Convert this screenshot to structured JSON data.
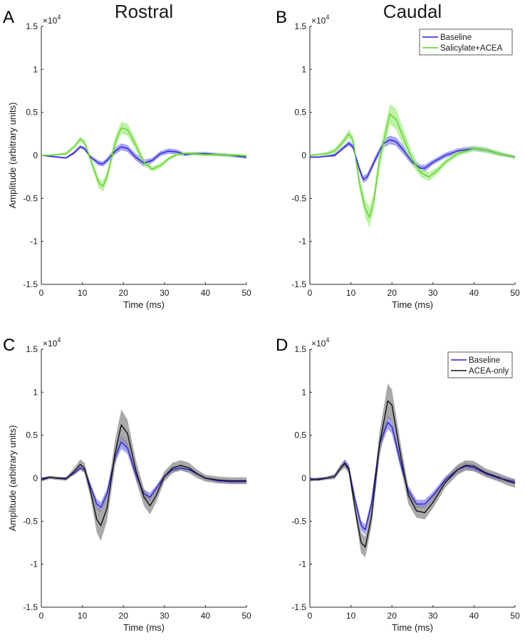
{
  "colors": {
    "baseline": "#2a1fd6",
    "baseline_band": "#8a86f2",
    "salicylate": "#5fd425",
    "salicylate_band": "#a8ee8a",
    "acea": "#111111",
    "acea_band": "#8c8c8c"
  },
  "chart_data": [
    {
      "type": "line",
      "panel": "A",
      "title": "Rostral",
      "xlabel": "Time (ms)",
      "ylabel": "Amplitude (arbitrary units)",
      "exponent_base": "×10",
      "exponent_power": "4",
      "xlim": [
        0,
        50
      ],
      "ylim": [
        -1.5,
        1.5
      ],
      "xticks": [
        0,
        10,
        20,
        30,
        40,
        50
      ],
      "yticks": [
        -1.5,
        -1,
        -0.5,
        0,
        0.5,
        1,
        1.5
      ],
      "xtick_labels": [
        "0",
        "10",
        "20",
        "30",
        "40",
        "50"
      ],
      "ytick_labels": [
        "-1.5",
        "-1",
        "-0.5",
        "0",
        "0.5",
        "1",
        "1.5"
      ],
      "legend": null,
      "series": [
        {
          "name": "Baseline",
          "color_key": "baseline",
          "x": [
            0,
            2,
            4,
            6,
            8,
            9.5,
            10.5,
            12,
            14,
            15,
            16,
            18,
            19.5,
            21,
            23,
            25,
            27,
            29,
            31,
            33,
            35,
            37,
            40,
            43,
            46,
            48,
            50
          ],
          "y": [
            0,
            -0.01,
            -0.02,
            -0.03,
            0.03,
            0.1,
            0.08,
            -0.02,
            -0.09,
            -0.1,
            -0.06,
            0.05,
            0.1,
            0.08,
            -0.02,
            -0.09,
            -0.06,
            0.02,
            0.05,
            0.04,
            0.01,
            0.02,
            0.02,
            0.01,
            0,
            -0.01,
            -0.02
          ],
          "band": [
            0,
            0.01,
            0.01,
            0.01,
            0.02,
            0.02,
            0.02,
            0.02,
            0.03,
            0.03,
            0.03,
            0.04,
            0.04,
            0.04,
            0.04,
            0.04,
            0.03,
            0.03,
            0.03,
            0.03,
            0.02,
            0.02,
            0.02,
            0.02,
            0.02,
            0.02,
            0.02
          ]
        },
        {
          "name": "Salicylate+ACEA",
          "color_key": "salicylate",
          "x": [
            0,
            2,
            4,
            6,
            8,
            9.5,
            10.5,
            12,
            14,
            15,
            16,
            18,
            19.5,
            21,
            23,
            25,
            27,
            29,
            31,
            33,
            35,
            37,
            40,
            43,
            46,
            48,
            50
          ],
          "y": [
            0,
            0,
            0.01,
            0.02,
            0.1,
            0.19,
            0.15,
            -0.05,
            -0.32,
            -0.36,
            -0.25,
            0.15,
            0.32,
            0.3,
            0.12,
            -0.08,
            -0.16,
            -0.12,
            -0.04,
            0.01,
            0.02,
            0.02,
            0.01,
            0.01,
            0,
            0,
            -0.01
          ],
          "band": [
            0,
            0.01,
            0.01,
            0.02,
            0.02,
            0.03,
            0.03,
            0.04,
            0.06,
            0.06,
            0.06,
            0.07,
            0.07,
            0.07,
            0.06,
            0.04,
            0.03,
            0.03,
            0.02,
            0.02,
            0.02,
            0.02,
            0.02,
            0.02,
            0.02,
            0.02,
            0.02
          ]
        }
      ]
    },
    {
      "type": "line",
      "panel": "B",
      "title": "Caudal",
      "xlabel": "Time (ms)",
      "ylabel": "",
      "exponent_base": "×10",
      "exponent_power": "4",
      "xlim": [
        0,
        50
      ],
      "ylim": [
        -1.5,
        1.5
      ],
      "xticks": [
        0,
        10,
        20,
        30,
        40,
        50
      ],
      "yticks": [
        -1.5,
        -1,
        -0.5,
        0,
        0.5,
        1,
        1.5
      ],
      "xtick_labels": [
        "0",
        "10",
        "20",
        "30",
        "40",
        "50"
      ],
      "ytick_labels": [
        "-1.5",
        "-1",
        "-0.5",
        "0",
        "0.5",
        "1",
        "1.5"
      ],
      "legend": {
        "position": "top-right",
        "entries": [
          "Baseline",
          "Salicylate+ACEA"
        ]
      },
      "series": [
        {
          "name": "Baseline",
          "color_key": "baseline",
          "x": [
            0,
            2,
            4,
            6,
            8,
            9.5,
            10.5,
            12,
            13,
            14,
            16,
            18,
            19.5,
            21,
            23,
            25,
            27,
            28,
            30,
            33,
            36,
            40,
            43,
            46,
            48,
            50
          ],
          "y": [
            -0.02,
            -0.02,
            -0.01,
            0,
            0.08,
            0.14,
            0.1,
            -0.15,
            -0.28,
            -0.25,
            -0.04,
            0.14,
            0.18,
            0.16,
            0.05,
            -0.08,
            -0.15,
            -0.15,
            -0.08,
            0,
            0.05,
            0.08,
            0.06,
            0.02,
            0,
            -0.02
          ],
          "band": [
            0.01,
            0.01,
            0.01,
            0.02,
            0.02,
            0.03,
            0.03,
            0.04,
            0.04,
            0.04,
            0.04,
            0.05,
            0.05,
            0.05,
            0.05,
            0.04,
            0.04,
            0.04,
            0.03,
            0.03,
            0.03,
            0.03,
            0.03,
            0.02,
            0.02,
            0.02
          ]
        },
        {
          "name": "Salicylate+ACEA",
          "color_key": "salicylate",
          "x": [
            0,
            2,
            4,
            6,
            8,
            9.5,
            10.5,
            12,
            13.5,
            14.5,
            15.5,
            17,
            19.5,
            21,
            23,
            25,
            27,
            29,
            31,
            33,
            36,
            40,
            43,
            46,
            48,
            50
          ],
          "y": [
            0,
            0.01,
            0.02,
            0.05,
            0.15,
            0.25,
            0.18,
            -0.3,
            -0.62,
            -0.72,
            -0.55,
            -0.05,
            0.48,
            0.42,
            0.18,
            -0.05,
            -0.2,
            -0.25,
            -0.18,
            -0.08,
            0.02,
            0.08,
            0.06,
            0.02,
            0,
            -0.02
          ],
          "band": [
            0.01,
            0.01,
            0.02,
            0.03,
            0.04,
            0.05,
            0.05,
            0.08,
            0.1,
            0.12,
            0.1,
            0.1,
            0.12,
            0.12,
            0.1,
            0.07,
            0.05,
            0.05,
            0.04,
            0.03,
            0.03,
            0.03,
            0.03,
            0.03,
            0.02,
            0.02
          ]
        }
      ]
    },
    {
      "type": "line",
      "panel": "C",
      "title": "",
      "xlabel": "Time (ms)",
      "ylabel": "Amplitude (arbitrary units)",
      "exponent_base": "×10",
      "exponent_power": "4",
      "xlim": [
        0,
        50
      ],
      "ylim": [
        -1.5,
        1.5
      ],
      "xticks": [
        0,
        10,
        20,
        30,
        40,
        50
      ],
      "yticks": [
        -1.5,
        -1,
        -0.5,
        0,
        0.5,
        1,
        1.5
      ],
      "xtick_labels": [
        "0",
        "10",
        "20",
        "30",
        "40",
        "50"
      ],
      "ytick_labels": [
        "-1.5",
        "-1",
        "-0.5",
        "0",
        "0.5",
        "1",
        "1.5"
      ],
      "legend": null,
      "series": [
        {
          "name": "Baseline",
          "color_key": "baseline",
          "x": [
            0,
            2,
            4,
            6,
            8,
            9.5,
            10.5,
            12,
            13.5,
            14.5,
            16,
            18,
            19.5,
            21,
            23,
            25,
            26.5,
            28,
            30,
            32,
            34,
            36,
            38,
            40,
            43,
            46,
            48,
            50
          ],
          "y": [
            0,
            0.01,
            0,
            0,
            0.06,
            0.12,
            0.1,
            -0.1,
            -0.3,
            -0.34,
            -0.18,
            0.25,
            0.42,
            0.35,
            0.05,
            -0.18,
            -0.22,
            -0.12,
            0.02,
            0.1,
            0.12,
            0.1,
            0.05,
            0,
            -0.03,
            -0.04,
            -0.04,
            -0.04
          ],
          "band": [
            0.01,
            0.01,
            0.01,
            0.01,
            0.02,
            0.03,
            0.03,
            0.04,
            0.06,
            0.06,
            0.06,
            0.07,
            0.08,
            0.07,
            0.06,
            0.05,
            0.05,
            0.04,
            0.03,
            0.03,
            0.03,
            0.03,
            0.02,
            0.02,
            0.02,
            0.02,
            0.02,
            0.02
          ]
        },
        {
          "name": "ACEA-only",
          "color_key": "acea",
          "x": [
            0,
            2,
            4,
            6,
            8,
            9.5,
            10.5,
            12,
            13.5,
            14.5,
            16,
            18,
            19.5,
            21,
            23,
            25,
            26.5,
            28,
            30,
            32,
            34,
            36,
            38,
            40,
            43,
            46,
            48,
            50
          ],
          "y": [
            -0.02,
            0.01,
            0,
            -0.01,
            0.08,
            0.16,
            0.12,
            -0.15,
            -0.48,
            -0.55,
            -0.35,
            0.3,
            0.62,
            0.52,
            0.1,
            -0.22,
            -0.32,
            -0.2,
            0.02,
            0.12,
            0.15,
            0.12,
            0.05,
            0,
            -0.02,
            -0.03,
            -0.03,
            -0.03
          ],
          "band": [
            0.02,
            0.02,
            0.02,
            0.02,
            0.04,
            0.06,
            0.06,
            0.08,
            0.15,
            0.18,
            0.15,
            0.15,
            0.18,
            0.16,
            0.12,
            0.1,
            0.1,
            0.08,
            0.06,
            0.06,
            0.06,
            0.06,
            0.05,
            0.04,
            0.04,
            0.04,
            0.04,
            0.04
          ]
        }
      ]
    },
    {
      "type": "line",
      "panel": "D",
      "title": "",
      "xlabel": "Time (ms)",
      "ylabel": "",
      "exponent_base": "×10",
      "exponent_power": "4",
      "xlim": [
        0,
        50
      ],
      "ylim": [
        -1.5,
        1.5
      ],
      "xticks": [
        0,
        10,
        20,
        30,
        40,
        50
      ],
      "yticks": [
        -1.5,
        -1,
        -0.5,
        0,
        0.5,
        1,
        1.5
      ],
      "xtick_labels": [
        "0",
        "10",
        "20",
        "30",
        "40",
        "50"
      ],
      "ytick_labels": [
        "-1.5",
        "-1",
        "-0.5",
        "0",
        "0.5",
        "1",
        "1.5"
      ],
      "legend": {
        "position": "top-right",
        "entries": [
          "Baseline",
          "ACEA-only"
        ]
      },
      "series": [
        {
          "name": "Baseline",
          "color_key": "baseline",
          "x": [
            0,
            2,
            4,
            6,
            7.5,
            8.5,
            9.5,
            11,
            12.5,
            13.5,
            15,
            17,
            19,
            20,
            22,
            24,
            26,
            28,
            30,
            33,
            36,
            38,
            40,
            43,
            46,
            48,
            50
          ],
          "y": [
            0,
            -0.02,
            0,
            0.02,
            0.12,
            0.18,
            0.12,
            -0.25,
            -0.55,
            -0.6,
            -0.3,
            0.4,
            0.65,
            0.6,
            0.2,
            -0.15,
            -0.3,
            -0.3,
            -0.2,
            -0.02,
            0.1,
            0.14,
            0.12,
            0.05,
            0,
            -0.02,
            -0.04
          ],
          "band": [
            0.01,
            0.01,
            0.01,
            0.02,
            0.03,
            0.04,
            0.04,
            0.05,
            0.06,
            0.06,
            0.06,
            0.07,
            0.08,
            0.08,
            0.07,
            0.06,
            0.05,
            0.05,
            0.04,
            0.04,
            0.04,
            0.04,
            0.04,
            0.03,
            0.03,
            0.03,
            0.03
          ]
        },
        {
          "name": "ACEA-only",
          "color_key": "acea",
          "x": [
            0,
            2,
            4,
            6,
            7.5,
            8.5,
            9.5,
            11,
            12.5,
            13.5,
            15,
            17,
            19,
            20,
            22,
            24,
            26,
            28,
            30,
            33,
            36,
            38,
            40,
            43,
            46,
            48,
            50
          ],
          "y": [
            -0.02,
            -0.01,
            0,
            0.02,
            0.12,
            0.17,
            0.1,
            -0.35,
            -0.75,
            -0.8,
            -0.45,
            0.4,
            0.9,
            0.85,
            0.3,
            -0.2,
            -0.38,
            -0.4,
            -0.28,
            -0.05,
            0.1,
            0.15,
            0.14,
            0.06,
            0.01,
            -0.03,
            -0.06
          ],
          "band": [
            0.02,
            0.02,
            0.02,
            0.03,
            0.04,
            0.05,
            0.05,
            0.08,
            0.12,
            0.12,
            0.12,
            0.15,
            0.2,
            0.18,
            0.14,
            0.1,
            0.08,
            0.08,
            0.07,
            0.06,
            0.06,
            0.06,
            0.06,
            0.05,
            0.05,
            0.05,
            0.05
          ]
        }
      ]
    }
  ]
}
